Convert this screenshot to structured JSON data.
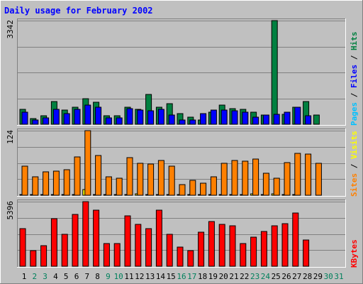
{
  "chart_data": {
    "title": "Daily usage for February 2002",
    "days": [
      "1",
      "2",
      "3",
      "4",
      "5",
      "6",
      "7",
      "8",
      "9",
      "10",
      "11",
      "12",
      "13",
      "14",
      "15",
      "16",
      "17",
      "18",
      "19",
      "20",
      "21",
      "22",
      "23",
      "24",
      "25",
      "26",
      "27",
      "28",
      "29",
      "30",
      "31"
    ],
    "weekend_days": [
      "2",
      "3",
      "9",
      "10",
      "16",
      "17",
      "23",
      "24",
      "30",
      "31"
    ],
    "colors": {
      "background": "#C0C0C0",
      "hits": "#008040",
      "files": "#0000FF",
      "pages": "#00C0FF",
      "visits": "#FFFF00",
      "sites": "#FF8000",
      "kbytes": "#FF0000",
      "weekday_label": "#000000",
      "weekend_label": "#00805C",
      "title": "#0000FF"
    },
    "panels": [
      {
        "type": "bar",
        "ymax_label": "3342",
        "ymax": 3342,
        "right_label": [
          {
            "text": "Pages",
            "color": "#00C0FF"
          },
          {
            "text": " / ",
            "color": "#000000"
          },
          {
            "text": "Files",
            "color": "#0000FF"
          },
          {
            "text": " / ",
            "color": "#000000"
          },
          {
            "text": "Hits",
            "color": "#008040"
          }
        ],
        "series": [
          {
            "name": "Hits",
            "color": "#008040",
            "values": [
              485,
              173,
              285,
              739,
              462,
              554,
              834,
              718,
              282,
              282,
              554,
              485,
              970,
              543,
              669,
              354,
              220,
              147,
              378,
              616,
              508,
              485,
              392,
              297,
              3342,
              328,
              554,
              739,
              300,
              0,
              0
            ]
          },
          {
            "name": "Files",
            "color": "#0000FF",
            "values": [
              397,
              128,
              196,
              485,
              343,
              485,
              616,
              554,
              196,
              196,
              508,
              463,
              440,
              485,
              308,
              128,
              128,
              343,
              463,
              463,
              440,
              392,
              235,
              300,
              328,
              397,
              554,
              265,
              0,
              0,
              0
            ]
          },
          {
            "name": "Pages",
            "color": "#00C0FF",
            "values": [
              0,
              0,
              0,
              0,
              0,
              0,
              0,
              0,
              0,
              0,
              0,
              0,
              0,
              0,
              0,
              0,
              0,
              0,
              0,
              0,
              0,
              0,
              0,
              0,
              0,
              0,
              0,
              0,
              0,
              0,
              0
            ]
          }
        ]
      },
      {
        "type": "bar",
        "ymax_label": "124",
        "ymax": 124,
        "right_label": [
          {
            "text": "Sites",
            "color": "#FF8000"
          },
          {
            "text": " / ",
            "color": "#000000"
          },
          {
            "text": "Visits",
            "color": "#FFFF00"
          }
        ],
        "series": [
          {
            "name": "Visits",
            "color": "#FFFF00",
            "values": [
              1,
              1,
              1,
              1,
              1,
              1,
              11,
              1,
              1,
              1,
              1,
              3,
              1,
              1,
              1,
              1,
              1,
              1,
              2,
              1,
              1,
              1,
              3,
              1,
              3,
              1,
              1,
              0,
              0,
              0,
              0
            ]
          },
          {
            "name": "Sites",
            "color": "#FF8000",
            "values": [
              56,
              35,
              45,
              47,
              49,
              73,
              124,
              76,
              35,
              33,
              72,
              61,
              60,
              67,
              56,
              20,
              28,
              23,
              36,
              61,
              67,
              65,
              69,
              42,
              33,
              62,
              80,
              79,
              61,
              0,
              0
            ]
          }
        ]
      },
      {
        "type": "bar",
        "ymax_label": "5396",
        "ymax": 5396,
        "right_label": [
          {
            "text": "KBytes",
            "color": "#FF0000"
          }
        ],
        "series": [
          {
            "name": "KBytes",
            "color": "#FF0000",
            "values": [
              3116,
              1281,
              1712,
              3982,
              2647,
              4342,
              5396,
              4702,
              1903,
              1903,
              4202,
              3487,
              3116,
              4702,
              2647,
              1601,
              1281,
              2861,
              3736,
              3487,
              3394,
              1903,
              2426,
              2919,
              3394,
              3580,
              4474,
              2180,
              0,
              0,
              0
            ]
          }
        ]
      }
    ]
  }
}
